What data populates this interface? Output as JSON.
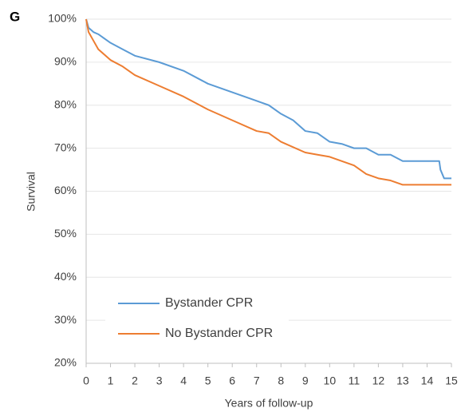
{
  "panel_label": "G",
  "chart_data": {
    "type": "line",
    "ylabel": "Survival",
    "xlabel": "Years of follow-up",
    "xlim": [
      0,
      15
    ],
    "xticks": [
      0,
      1,
      2,
      3,
      4,
      5,
      6,
      7,
      8,
      9,
      10,
      11,
      12,
      13,
      14,
      15
    ],
    "ylim": [
      20,
      100
    ],
    "yticks": [
      {
        "value": 20,
        "label": "20%"
      },
      {
        "value": 30,
        "label": "30%"
      },
      {
        "value": 40,
        "label": "40%"
      },
      {
        "value": 50,
        "label": "50%"
      },
      {
        "value": 60,
        "label": "60%"
      },
      {
        "value": 70,
        "label": "70%"
      },
      {
        "value": 80,
        "label": "80%"
      },
      {
        "value": 90,
        "label": "90%"
      },
      {
        "value": 100,
        "label": "100%"
      }
    ],
    "grid": true,
    "legend": "lower left",
    "series": [
      {
        "name": "Bystander CPR",
        "color": "#5b9bd5",
        "x": [
          0,
          0.1,
          0.3,
          0.5,
          1,
          1.5,
          2,
          3,
          4,
          5,
          6,
          7,
          7.5,
          8,
          8.5,
          9,
          9.5,
          10,
          10.5,
          11,
          11.5,
          12,
          12.5,
          13,
          14,
          14.5,
          14.55,
          14.7,
          15
        ],
        "values": [
          100,
          98,
          97,
          96.5,
          94.5,
          93,
          91.5,
          90,
          88,
          85,
          83,
          81,
          80,
          78,
          76.5,
          74,
          73.5,
          71.5,
          71,
          70,
          70,
          68.5,
          68.5,
          67,
          67,
          67,
          65,
          63,
          63
        ]
      },
      {
        "name": "No Bystander CPR",
        "color": "#ed7d31",
        "x": [
          0,
          0.1,
          0.3,
          0.5,
          1,
          1.5,
          2,
          3,
          4,
          5,
          6,
          7,
          7.5,
          8,
          9,
          9.5,
          10,
          11,
          11.5,
          12,
          12.5,
          13,
          14,
          15
        ],
        "values": [
          100,
          97,
          95,
          93,
          90.5,
          89,
          87,
          84.5,
          82,
          79,
          76.5,
          74,
          73.5,
          71.5,
          69,
          68.5,
          68,
          66,
          64,
          63,
          62.5,
          61.5,
          61.5,
          61.5
        ]
      }
    ]
  }
}
